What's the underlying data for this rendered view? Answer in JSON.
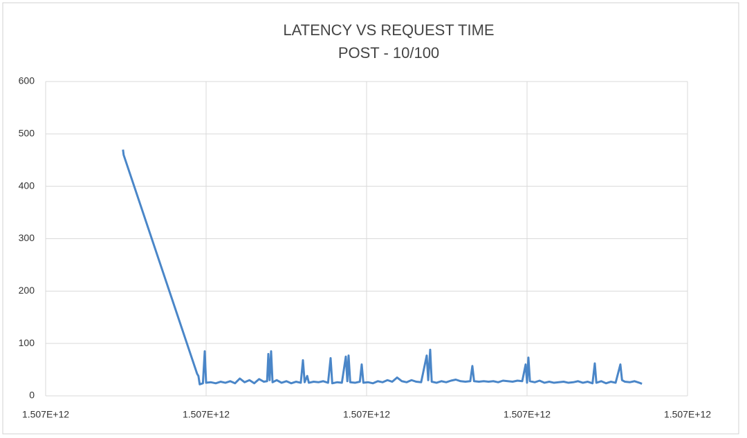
{
  "chart_data": {
    "type": "line",
    "title": "LATENCY VS REQUEST TIME",
    "subtitle": "POST - 10/100",
    "xlim": [
      1507000000000,
      1507000200000
    ],
    "xticks": [
      {
        "value": 1507000000000,
        "label": "1.507E+12"
      },
      {
        "value": 1507000050000,
        "label": "1.507E+12"
      },
      {
        "value": 1507000100000,
        "label": "1.507E+12"
      },
      {
        "value": 1507000150000,
        "label": "1.507E+12"
      },
      {
        "value": 1507000200000,
        "label": "1.507E+12"
      }
    ],
    "ylim": [
      0,
      600
    ],
    "yticks": [
      0,
      100,
      200,
      300,
      400,
      500,
      600
    ],
    "grid": true,
    "series": [
      {
        "color": "#4a86c8",
        "x": [
          1507000024100,
          1507000024300,
          1507000047200,
          1507000047600,
          1507000048000,
          1507000049000,
          1507000049570,
          1507000050000,
          1507000051500,
          1507000053000,
          1507000054500,
          1507000056000,
          1507000057500,
          1507000059000,
          1507000060500,
          1507000062000,
          1507000063500,
          1507000065000,
          1507000066500,
          1507000068000,
          1507000069000,
          1507000069390,
          1507000069800,
          1507000070250,
          1507000070700,
          1507000072000,
          1507000073500,
          1507000075000,
          1507000076500,
          1507000078000,
          1507000079500,
          1507000080170,
          1507000080700,
          1507000081500,
          1507000082000,
          1507000083500,
          1507000085000,
          1507000086500,
          1507000088000,
          1507000088790,
          1507000089300,
          1507000090800,
          1507000092300,
          1507000093530,
          1507000094000,
          1507000094390,
          1507000094900,
          1507000096400,
          1507000097900,
          1507000098480,
          1507000099000,
          1507000100500,
          1507000102000,
          1507000103500,
          1507000105000,
          1507000106500,
          1507000108000,
          1507000109500,
          1507000111000,
          1507000112500,
          1507000114000,
          1507000115500,
          1507000117000,
          1507000118740,
          1507000119200,
          1507000119820,
          1507000120300,
          1507000121800,
          1507000123300,
          1507000124800,
          1507000126300,
          1507000127800,
          1507000129300,
          1507000130800,
          1507000132300,
          1507000132960,
          1507000133500,
          1507000135000,
          1507000136500,
          1507000138000,
          1507000139500,
          1507000141000,
          1507000142500,
          1507000144000,
          1507000145500,
          1507000147000,
          1507000148500,
          1507000149560,
          1507000150000,
          1507000150420,
          1507000150900,
          1507000152400,
          1507000153900,
          1507000155400,
          1507000156900,
          1507000158400,
          1507000159900,
          1507000161400,
          1507000162900,
          1507000164400,
          1507000165900,
          1507000167400,
          1507000168900,
          1507000170400,
          1507000171110,
          1507000171600,
          1507000173100,
          1507000174600,
          1507000176100,
          1507000177600,
          1507000179080,
          1507000179600,
          1507000180500,
          1507000182000,
          1507000183500,
          1507000185000,
          1507000185800
        ],
        "values": [
          470,
          460,
          42,
          38,
          22,
          24,
          85,
          25,
          26,
          24,
          27,
          25,
          28,
          24,
          33,
          26,
          30,
          24,
          32,
          27,
          28,
          80,
          30,
          85,
          26,
          30,
          25,
          28,
          24,
          27,
          25,
          68,
          26,
          38,
          25,
          27,
          26,
          28,
          25,
          72,
          24,
          26,
          25,
          75,
          28,
          77,
          26,
          25,
          27,
          60,
          25,
          26,
          24,
          28,
          26,
          30,
          27,
          35,
          28,
          26,
          30,
          27,
          26,
          77,
          30,
          88,
          27,
          25,
          28,
          26,
          29,
          31,
          28,
          27,
          28,
          57,
          28,
          27,
          28,
          27,
          28,
          26,
          29,
          28,
          27,
          29,
          28,
          60,
          25,
          73,
          28,
          26,
          29,
          25,
          27,
          25,
          26,
          27,
          25,
          26,
          28,
          25,
          27,
          24,
          62,
          25,
          28,
          24,
          27,
          25,
          60,
          30,
          27,
          26,
          28,
          25,
          23
        ]
      }
    ]
  }
}
